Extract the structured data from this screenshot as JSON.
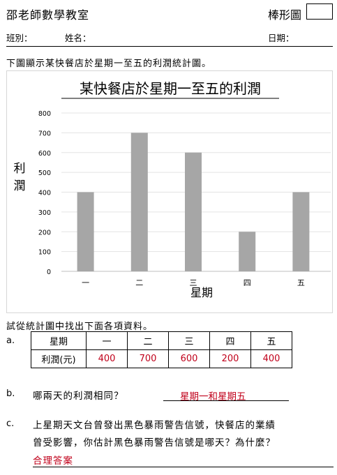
{
  "header": {
    "school": "邵老師數學教室",
    "worksheet_type": "棒形圖"
  },
  "meta": {
    "class_label": "班別：",
    "name_label": "姓名：",
    "date_label": "日期："
  },
  "intro": "下圖顯示某快餐店於星期一至五的利潤統計圖。",
  "chart_data": {
    "type": "bar",
    "title": "某快餐店於星期一至五的利潤",
    "xlabel": "星期",
    "ylabel": "利潤",
    "categories": [
      "一",
      "二",
      "三",
      "四",
      "五"
    ],
    "values": [
      400,
      700,
      600,
      200,
      400
    ],
    "ylim": [
      0,
      800
    ],
    "yticks": [
      0,
      100,
      200,
      300,
      400,
      500,
      600,
      700,
      800
    ],
    "grid": true,
    "bar_color": "#a6a6a6"
  },
  "find_instruction": "試從統計圖中找出下面各項資料。",
  "questions": {
    "a": {
      "letter": "a.",
      "table": {
        "header_label": "星期",
        "row_label": "利潤(元)",
        "days": [
          "一",
          "二",
          "三",
          "四",
          "五"
        ],
        "profits": [
          "400",
          "700",
          "600",
          "200",
          "400"
        ]
      }
    },
    "b": {
      "letter": "b.",
      "text": "哪兩天的利潤相同？",
      "answer": "星期一和星期五"
    },
    "c": {
      "letter": "c.",
      "line1": "上星期天文台曾發出黑色暴雨警告信號，快餐店的業績",
      "line2": "曾受影響，你估計黑色暴雨警告信號是哪天？為什麼？",
      "answer": "合理答案"
    }
  },
  "colors": {
    "answer_red": "#c0001a"
  }
}
